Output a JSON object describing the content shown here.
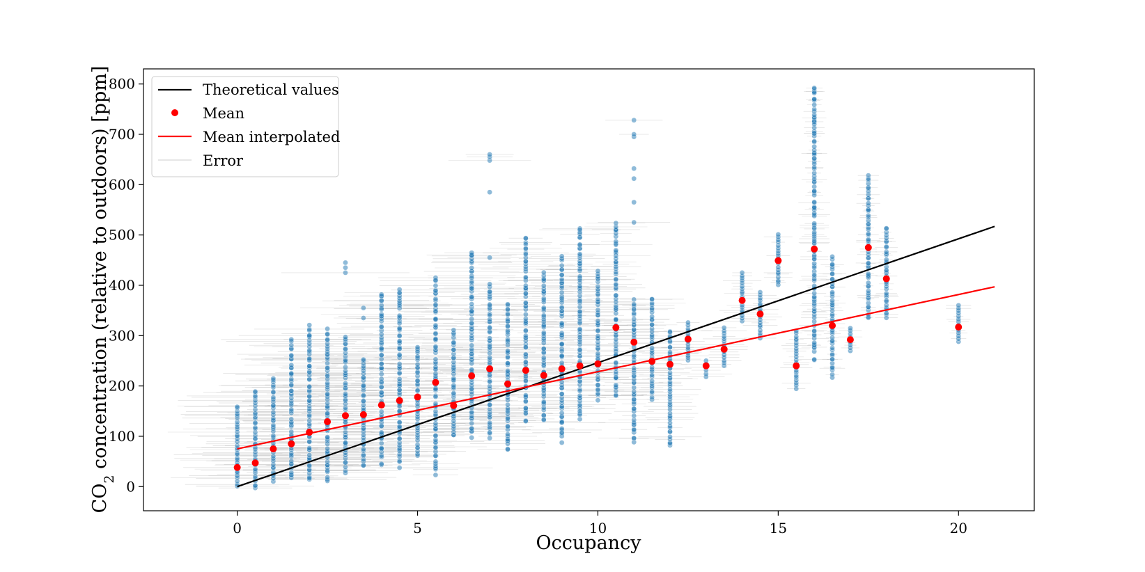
{
  "chart_data": {
    "type": "scatter",
    "xlabel": "Occupancy",
    "ylabel_prefix": "CO",
    "ylabel_sub": "2",
    "ylabel_suffix": " concentration (relative to outdoors) [ppm]",
    "xlim": [
      -2.6,
      22.1
    ],
    "ylim": [
      -48,
      830
    ],
    "xticks": [
      0,
      5,
      10,
      15,
      20
    ],
    "yticks": [
      0,
      100,
      200,
      300,
      400,
      500,
      600,
      700,
      800
    ],
    "legend": {
      "position": "top-left",
      "entries": [
        {
          "label": "Theoretical values",
          "kind": "line",
          "color": "#000000"
        },
        {
          "label": "Mean",
          "kind": "marker",
          "color": "#ff0000"
        },
        {
          "label": "Mean interpolated",
          "kind": "line",
          "color": "#ff0000"
        },
        {
          "label": "Error",
          "kind": "thin-line",
          "color": "#bbbbbb"
        }
      ]
    },
    "colors": {
      "points": "#1f77b4",
      "mean": "#ff0000",
      "theory": "#000000",
      "interp": "#ff0000",
      "error": "#999999"
    },
    "theoretical_line": {
      "x": [
        0,
        21
      ],
      "y": [
        0,
        517
      ]
    },
    "mean_interpolated_line": {
      "x": [
        0,
        21
      ],
      "y": [
        75,
        397
      ]
    },
    "mean": {
      "x": [
        0,
        0.5,
        1,
        1.5,
        2,
        2.5,
        3,
        3.5,
        4,
        4.5,
        5,
        5.5,
        6,
        6.5,
        7,
        7.5,
        8,
        8.5,
        9,
        9.5,
        10,
        10.5,
        11,
        11.5,
        12,
        12.5,
        13,
        13.5,
        14,
        14.5,
        15,
        15.5,
        16,
        16.5,
        17,
        17.5,
        18,
        20
      ],
      "y": [
        38,
        47,
        75,
        85,
        108,
        129,
        141,
        143,
        162,
        171,
        178,
        207,
        161,
        220,
        234,
        204,
        231,
        221,
        234,
        240,
        244,
        316,
        287,
        249,
        243,
        293,
        240,
        273,
        370,
        343,
        449,
        240,
        472,
        320,
        292,
        475,
        413,
        317
      ]
    },
    "scatter_columns": [
      {
        "x": 0,
        "min": 0,
        "max": 160
      },
      {
        "x": 0.5,
        "min": -5,
        "max": 190
      },
      {
        "x": 1,
        "min": 10,
        "max": 215
      },
      {
        "x": 1.5,
        "min": 15,
        "max": 290
      },
      {
        "x": 2,
        "min": 10,
        "max": 320
      },
      {
        "x": 2.5,
        "min": 10,
        "max": 310
      },
      {
        "x": 3,
        "min": 30,
        "max": 300,
        "extra": [
          425,
          435,
          445
        ]
      },
      {
        "x": 3.5,
        "min": 40,
        "max": 255,
        "extra": [
          335,
          355
        ]
      },
      {
        "x": 4,
        "min": 45,
        "max": 385
      },
      {
        "x": 4.5,
        "min": 42,
        "max": 395
      },
      {
        "x": 5,
        "min": 60,
        "max": 280
      },
      {
        "x": 5.5,
        "min": 28,
        "max": 415
      },
      {
        "x": 6,
        "min": 100,
        "max": 310
      },
      {
        "x": 6.5,
        "min": 100,
        "max": 470
      },
      {
        "x": 7,
        "min": 100,
        "max": 400,
        "extra": [
          455,
          585,
          648,
          655,
          660
        ]
      },
      {
        "x": 7.5,
        "min": 72,
        "max": 365
      },
      {
        "x": 8,
        "min": 130,
        "max": 495
      },
      {
        "x": 8.5,
        "min": 130,
        "max": 425
      },
      {
        "x": 9,
        "min": 92,
        "max": 455
      },
      {
        "x": 9.5,
        "min": 135,
        "max": 515
      },
      {
        "x": 10,
        "min": 175,
        "max": 430
      },
      {
        "x": 10.5,
        "min": 180,
        "max": 525
      },
      {
        "x": 11,
        "min": 90,
        "max": 370,
        "extra": [
          525,
          565,
          612,
          632,
          695,
          700,
          728
        ]
      },
      {
        "x": 11.5,
        "min": 175,
        "max": 375
      },
      {
        "x": 12,
        "min": 80,
        "max": 310
      },
      {
        "x": 12.5,
        "min": 250,
        "max": 325
      },
      {
        "x": 13,
        "min": 218,
        "max": 250
      },
      {
        "x": 13.5,
        "min": 240,
        "max": 315
      },
      {
        "x": 14,
        "min": 330,
        "max": 425
      },
      {
        "x": 14.5,
        "min": 295,
        "max": 385
      },
      {
        "x": 15,
        "min": 400,
        "max": 500
      },
      {
        "x": 15.5,
        "min": 195,
        "max": 310
      },
      {
        "x": 16,
        "min": 255,
        "max": 790,
        "extra": [
          720,
          782,
          792
        ]
      },
      {
        "x": 16.5,
        "min": 220,
        "max": 455
      },
      {
        "x": 17,
        "min": 270,
        "max": 315
      },
      {
        "x": 17.5,
        "min": 335,
        "max": 615
      },
      {
        "x": 18,
        "min": 335,
        "max": 515
      },
      {
        "x": 20,
        "min": 288,
        "max": 360
      }
    ]
  }
}
